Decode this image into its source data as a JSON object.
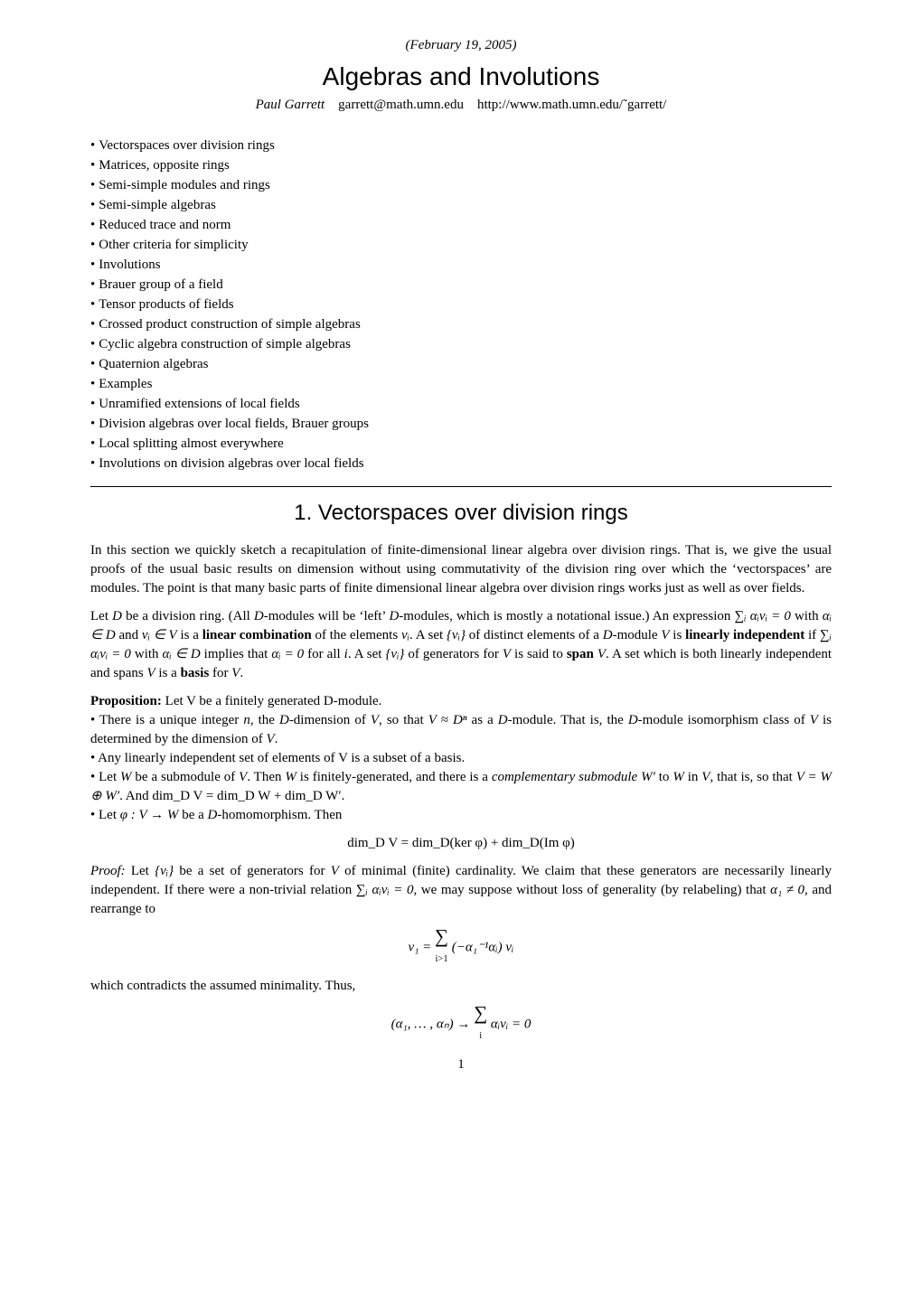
{
  "date": "(February 19, 2005)",
  "title": "Algebras and Involutions",
  "author_name": "Paul Garrett",
  "author_email": "garrett@math.umn.edu",
  "author_url": "http://www.math.umn.edu/˜garrett/",
  "toc": [
    "Vectorspaces over division rings",
    "Matrices, opposite rings",
    "Semi-simple modules and rings",
    "Semi-simple algebras",
    "Reduced trace and norm",
    "Other criteria for simplicity",
    "Involutions",
    "Brauer group of a field",
    "Tensor products of fields",
    "Crossed product construction of simple algebras",
    "Cyclic algebra construction of simple algebras",
    "Quaternion algebras",
    "Examples",
    "Unramified extensions of local fields",
    "Division algebras over local fields, Brauer groups",
    "Local splitting almost everywhere",
    "Involutions on division algebras over local fields"
  ],
  "section_title": "1. Vectorspaces over division rings",
  "para1": "In this section we quickly sketch a recapitulation of finite-dimensional linear algebra over division rings. That is, we give the usual proofs of the usual basic results on dimension without using commutativity of the division ring over which the ‘vectorspaces’ are modules. The point is that many basic parts of finite dimensional linear algebra over division rings works just as well as over fields.",
  "para2_a": "Let ",
  "para2_b": " be a division ring. (All ",
  "para2_c": "-modules will be ‘left’ ",
  "para2_d": "-modules, which is mostly a notational issue.) An expression ",
  "para2_expr1": "∑ᵢ αᵢvᵢ = 0",
  "para2_e": " with ",
  "para2_f": " and ",
  "para2_g": " is a ",
  "linear_combination": "linear combination",
  "para2_h": " of the elements ",
  "para2_i": ". A set ",
  "para2_j": " of distinct elements of a ",
  "para2_k": "-module ",
  "para2_l": " is ",
  "linearly_independent": "linearly independent",
  "para2_m": " if ",
  "para2_n": " with ",
  "para2_o": " implies that ",
  "para2_p": " for all ",
  "para2_q": ". A set ",
  "para2_r": " of generators for ",
  "para2_s": " is said to ",
  "span": "span",
  "para2_t": ". A set which is both linearly independent and spans ",
  "para2_u": " is a ",
  "basis": "basis",
  "para2_v": " for ",
  "prop_label": "Proposition:",
  "prop_intro": " Let V be a finitely generated D-module.",
  "prop1_a": "• There is a unique integer ",
  "prop1_b": ", the ",
  "prop1_c": "-dimension of ",
  "prop1_d": ", so that ",
  "prop1_e": " as a ",
  "prop1_f": "-module. That is, the ",
  "prop1_g": "-module isomorphism class of ",
  "prop1_h": " is determined by the dimension of ",
  "prop2": "• Any linearly independent set of elements of V is a subset of a basis.",
  "prop3_a": "• Let ",
  "prop3_b": " be a submodule of ",
  "prop3_c": ". Then ",
  "prop3_d": " is finitely-generated, and there is a ",
  "complementary": "complementary submodule",
  "prop3_e": " to ",
  "prop3_f": " in ",
  "prop3_g": ", that is, so that ",
  "prop3_h": ". And ",
  "prop4_a": "• Let ",
  "prop4_b": " be a ",
  "prop4_c": "-homomorphism. Then",
  "eqn1": "dim_D V = dim_D(ker φ) + dim_D(Im φ)",
  "proof_label": "Proof:",
  "proof1_a": " Let ",
  "proof1_b": " be a set of generators for ",
  "proof1_c": " of minimal (finite) cardinality. We claim that these generators are necessarily linearly independent. If there were a non-trivial relation ",
  "proof1_d": ", we may suppose without loss of generality (by relabeling) that ",
  "proof1_e": ", and rearrange to",
  "eqn2_lhs": "v₁ = ",
  "eqn2_sum": "∑",
  "eqn2_sub": "i>1",
  "eqn2_body": " (−α₁⁻¹αᵢ) vᵢ",
  "proof2": "which contradicts the assumed minimality. Thus,",
  "eqn3_lhs": "(α₁, … , αₙ) → ",
  "eqn3_sum": "∑",
  "eqn3_sub": "i",
  "eqn3_body": " αᵢvᵢ = 0",
  "pagenum": "1",
  "sym": {
    "D": "D",
    "V": "V",
    "W": "W",
    "Wp": "W′",
    "n": "n",
    "i": "i",
    "alpha_in_D": "αᵢ ∈ D",
    "v_in_V": "vᵢ ∈ V",
    "vi": "vᵢ",
    "vi_set": "{vᵢ}",
    "sum_av_zero": "∑ᵢ αᵢvᵢ = 0",
    "ai_in_D": "αᵢ ∈ D",
    "ai_zero": "αᵢ = 0",
    "V_iso_Dn": "V ≈ Dⁿ",
    "Wsplit": "V = W ⊕ W′",
    "dimsplit": "dim_D V = dim_D W + dim_D W′",
    "phi": "φ : V → W",
    "alpha1_ne0": "α₁ ≠ 0"
  }
}
